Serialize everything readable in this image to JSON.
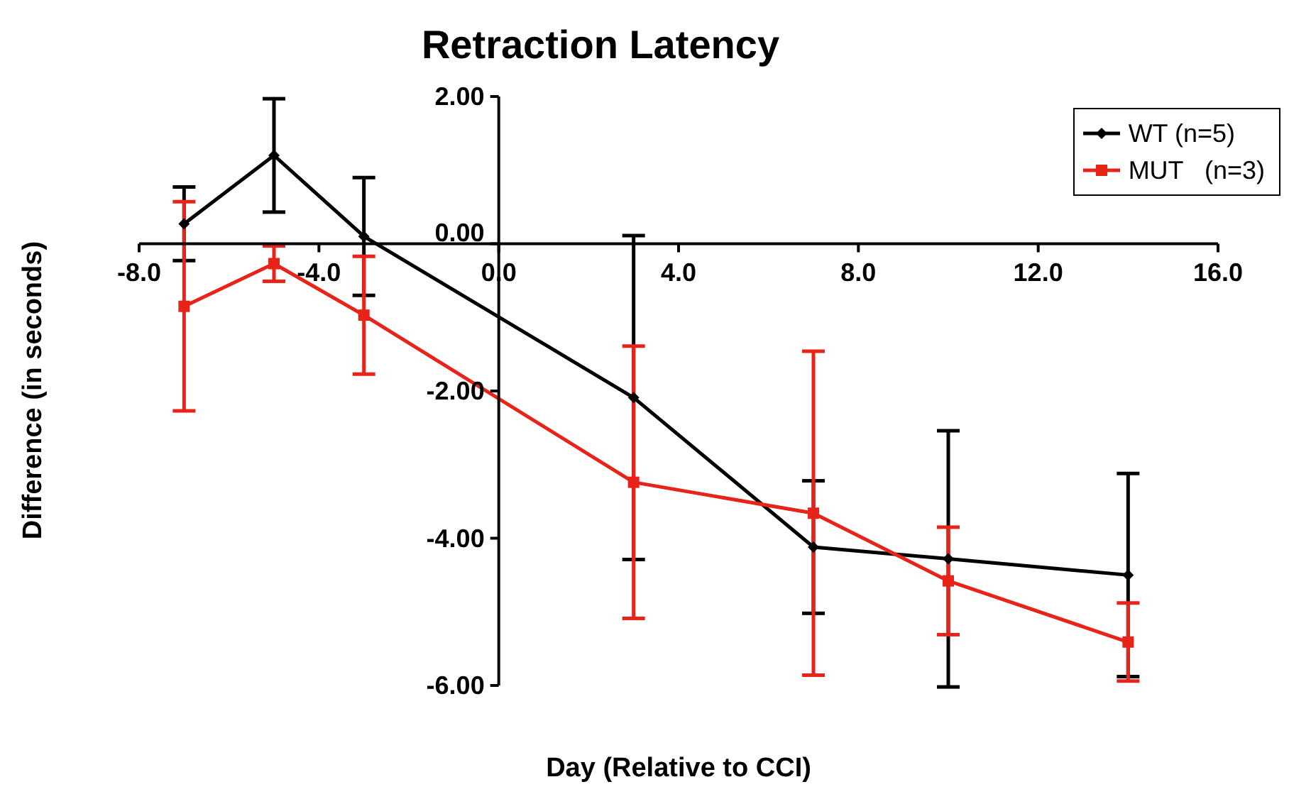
{
  "chart_data": {
    "type": "line",
    "title": "Retraction Latency",
    "xlabel": "Day (Relative to CCI)",
    "ylabel": "Difference (in seconds)",
    "x": [
      -7,
      -5,
      -3,
      3,
      7,
      10,
      14
    ],
    "series": [
      {
        "name": "WT (n=5)",
        "color": "#000000",
        "marker": "diamond",
        "values": [
          0.27,
          1.2,
          0.1,
          -2.09,
          -4.12,
          -4.28,
          -4.5
        ],
        "errors": [
          0.5,
          0.77,
          0.8,
          2.2,
          0.9,
          1.74,
          1.38
        ]
      },
      {
        "name": "MUT   (n=3)",
        "color": "#e8231a",
        "marker": "square",
        "values": [
          -0.85,
          -0.27,
          -0.97,
          -3.24,
          -3.66,
          -4.58,
          -5.41
        ],
        "errors": [
          1.42,
          0.24,
          0.8,
          1.85,
          2.2,
          0.73,
          0.53
        ]
      }
    ],
    "xlim": [
      -8,
      16
    ],
    "xticks": [
      {
        "value": -8,
        "label": "-8.0"
      },
      {
        "value": -4,
        "label": "-4.0"
      },
      {
        "value": 0,
        "label": "0.0"
      },
      {
        "value": 4,
        "label": "4.0"
      },
      {
        "value": 8,
        "label": "8.0"
      },
      {
        "value": 12,
        "label": "12.0"
      },
      {
        "value": 16,
        "label": "16.0"
      }
    ],
    "ylim": [
      -6,
      2
    ],
    "yticks": [
      {
        "value": -6,
        "label": "-6.00"
      },
      {
        "value": -4,
        "label": "-4.00"
      },
      {
        "value": -2,
        "label": "-2.00"
      },
      {
        "value": 0,
        "label": "0.00"
      },
      {
        "value": 2,
        "label": "2.00"
      }
    ],
    "legend": "top right",
    "grid": false
  }
}
